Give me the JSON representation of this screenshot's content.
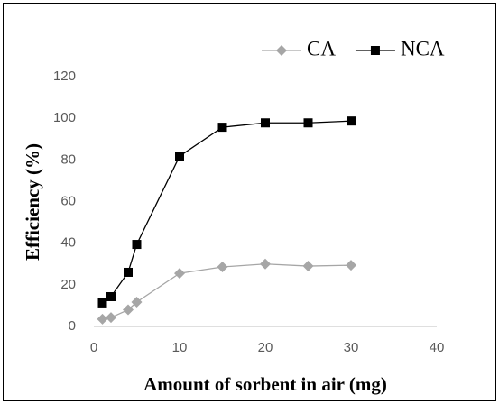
{
  "chart_data": {
    "type": "line",
    "xlabel": "Amount of sorbent in air (mg)",
    "ylabel": "Efficiency (%)",
    "series": [
      {
        "name": "CA",
        "color": "#a6a6a6",
        "marker": "diamond",
        "x": [
          1,
          2,
          4,
          5,
          10,
          15,
          20,
          25,
          30
        ],
        "values": [
          3.5,
          4.3,
          8,
          11.7,
          25.5,
          28.6,
          30,
          29,
          29.4
        ]
      },
      {
        "name": "NCA",
        "color": "#000000",
        "marker": "square",
        "x": [
          1,
          2,
          4,
          5,
          10,
          15,
          20,
          25,
          30
        ],
        "values": [
          11.3,
          14.3,
          26,
          39.4,
          81.8,
          95.7,
          97.8,
          97.8,
          98.7
        ]
      }
    ],
    "xlim": [
      0,
      40
    ],
    "xticks": [
      0,
      10,
      20,
      30,
      40
    ],
    "ylim": [
      0,
      120
    ],
    "yticks": [
      0,
      20,
      40,
      60,
      80,
      100,
      120
    ],
    "grid": false,
    "legend": "top-right"
  }
}
